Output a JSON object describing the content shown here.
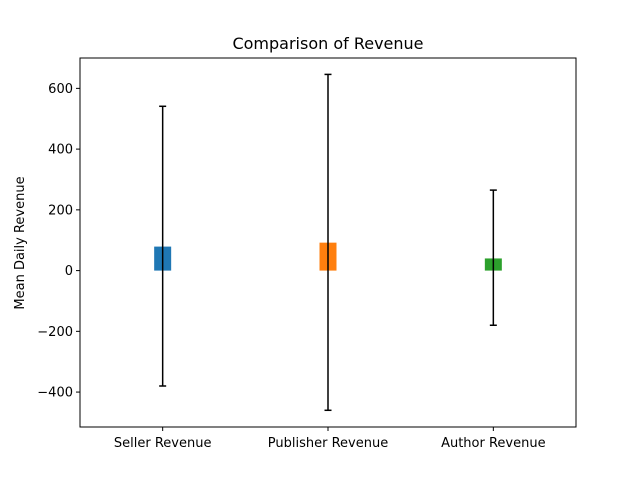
{
  "chart_data": {
    "type": "bar",
    "title": "Comparison of Revenue",
    "xlabel": "",
    "ylabel": "Mean Daily Revenue",
    "categories": [
      "Seller Revenue",
      "Publisher Revenue",
      "Author Revenue"
    ],
    "values": [
      79,
      92,
      40
    ],
    "error_low": [
      -380,
      -460,
      -180
    ],
    "error_high": [
      541,
      646,
      265
    ],
    "colors": [
      "#1f77b4",
      "#ff7f0e",
      "#2ca02c"
    ],
    "ylim": [
      -515,
      700
    ],
    "yticks": [
      -400,
      -200,
      0,
      200,
      400,
      600
    ],
    "ytick_labels": [
      "−400",
      "−200",
      "0",
      "200",
      "400",
      "600"
    ],
    "grid": false,
    "legend": "none"
  }
}
